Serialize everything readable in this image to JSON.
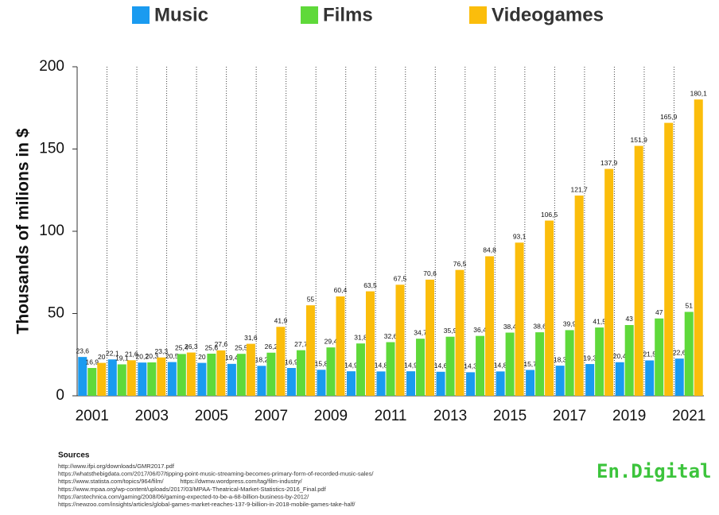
{
  "chart_data": {
    "type": "bar",
    "y_label": "Thousands of milions in $",
    "categories": [
      "2001",
      null,
      "2003",
      null,
      "2005",
      null,
      "2007",
      null,
      "2009",
      null,
      "2011",
      null,
      "2013",
      null,
      "2015",
      null,
      "2017",
      null,
      "2019",
      null,
      "2021"
    ],
    "series": [
      {
        "name": "Music",
        "color": "#1a9bf0",
        "values": [
          23.6,
          22.1,
          20.2,
          20.5,
          20,
          19.4,
          18.2,
          16.9,
          15.8,
          14.9,
          14.8,
          14.9,
          14.6,
          14.3,
          14.8,
          15.7,
          18.3,
          19.3,
          20.4,
          21.5,
          22.6
        ],
        "value_labels": [
          "23,6",
          "22,1",
          "20,2",
          "20,5",
          "20",
          "19,4",
          "18,2",
          "16,9",
          "15,8",
          "14,9",
          "14,8",
          "14,9",
          "14,6",
          "14,3",
          "14,8",
          "15,7",
          "18,3",
          "19,3",
          "20,4",
          "21,5",
          "22,6"
        ]
      },
      {
        "name": "Films",
        "color": "#5fd93a",
        "values": [
          16.9,
          19.1,
          20.3,
          25.4,
          25.6,
          25.5,
          26.2,
          27.7,
          29.4,
          31.8,
          32.6,
          34.7,
          35.9,
          36.4,
          38.4,
          38.6,
          39.9,
          41.5,
          43,
          47,
          51
        ],
        "value_labels": [
          "16,9",
          "19,1",
          "20,3",
          "25,4",
          "25,6",
          "25,5",
          "26,2",
          "27,7",
          "29,4",
          "31,8",
          "32,6",
          "34,7",
          "35,9",
          "36,4",
          "38,4",
          "38,6",
          "39,9",
          "41,5",
          "43",
          "47",
          "51"
        ]
      },
      {
        "name": "Videogames",
        "color": "#fbbd0b",
        "values": [
          20,
          21.6,
          23.3,
          26.3,
          27.6,
          31.6,
          41.9,
          55,
          60.4,
          63.5,
          67.5,
          70.6,
          76.5,
          84.8,
          93.1,
          106.5,
          121.7,
          137.9,
          151.9,
          165.9,
          180.1
        ],
        "value_labels": [
          "20",
          "21,6",
          "23,3",
          "26,3",
          "27,6",
          "31,6",
          "41,9",
          "55",
          "60,4",
          "63,5",
          "67,5",
          "70,6",
          "76,5",
          "84,8",
          "93,1",
          "106,5",
          "121,7",
          "137,9",
          "151,9",
          "165,9",
          "180,1"
        ]
      }
    ],
    "ylim": [
      0,
      200
    ],
    "yticks": [
      0,
      50,
      100,
      150,
      200
    ],
    "grid": true,
    "legend": "top"
  },
  "sources": {
    "title": "Sources",
    "links": [
      "http://www.ifpi.org/downloads/GMR2017.pdf",
      "https://whatsthebigdata.com/2017/06/07/tipping-point-music-streaming-becomes-primary-form-of-recorded-music-sales/",
      "https://www.statista.com/topics/964/film/          https://dwmw.wordpress.com/tag/film-industry/",
      "https://www.mpaa.org/wp-content/uploads/2017/03/MPAA-Theatrical-Market-Statistics-2016_Final.pdf",
      "https://arstechnica.com/gaming/2008/06/gaming-expected-to-be-a-68-billion-business-by-2012/",
      "https://newzoo.com/insights/articles/global-games-market-reaches-137-9-billion-in-2018-mobile-games-take-half/"
    ]
  },
  "logo": "En.Digital"
}
